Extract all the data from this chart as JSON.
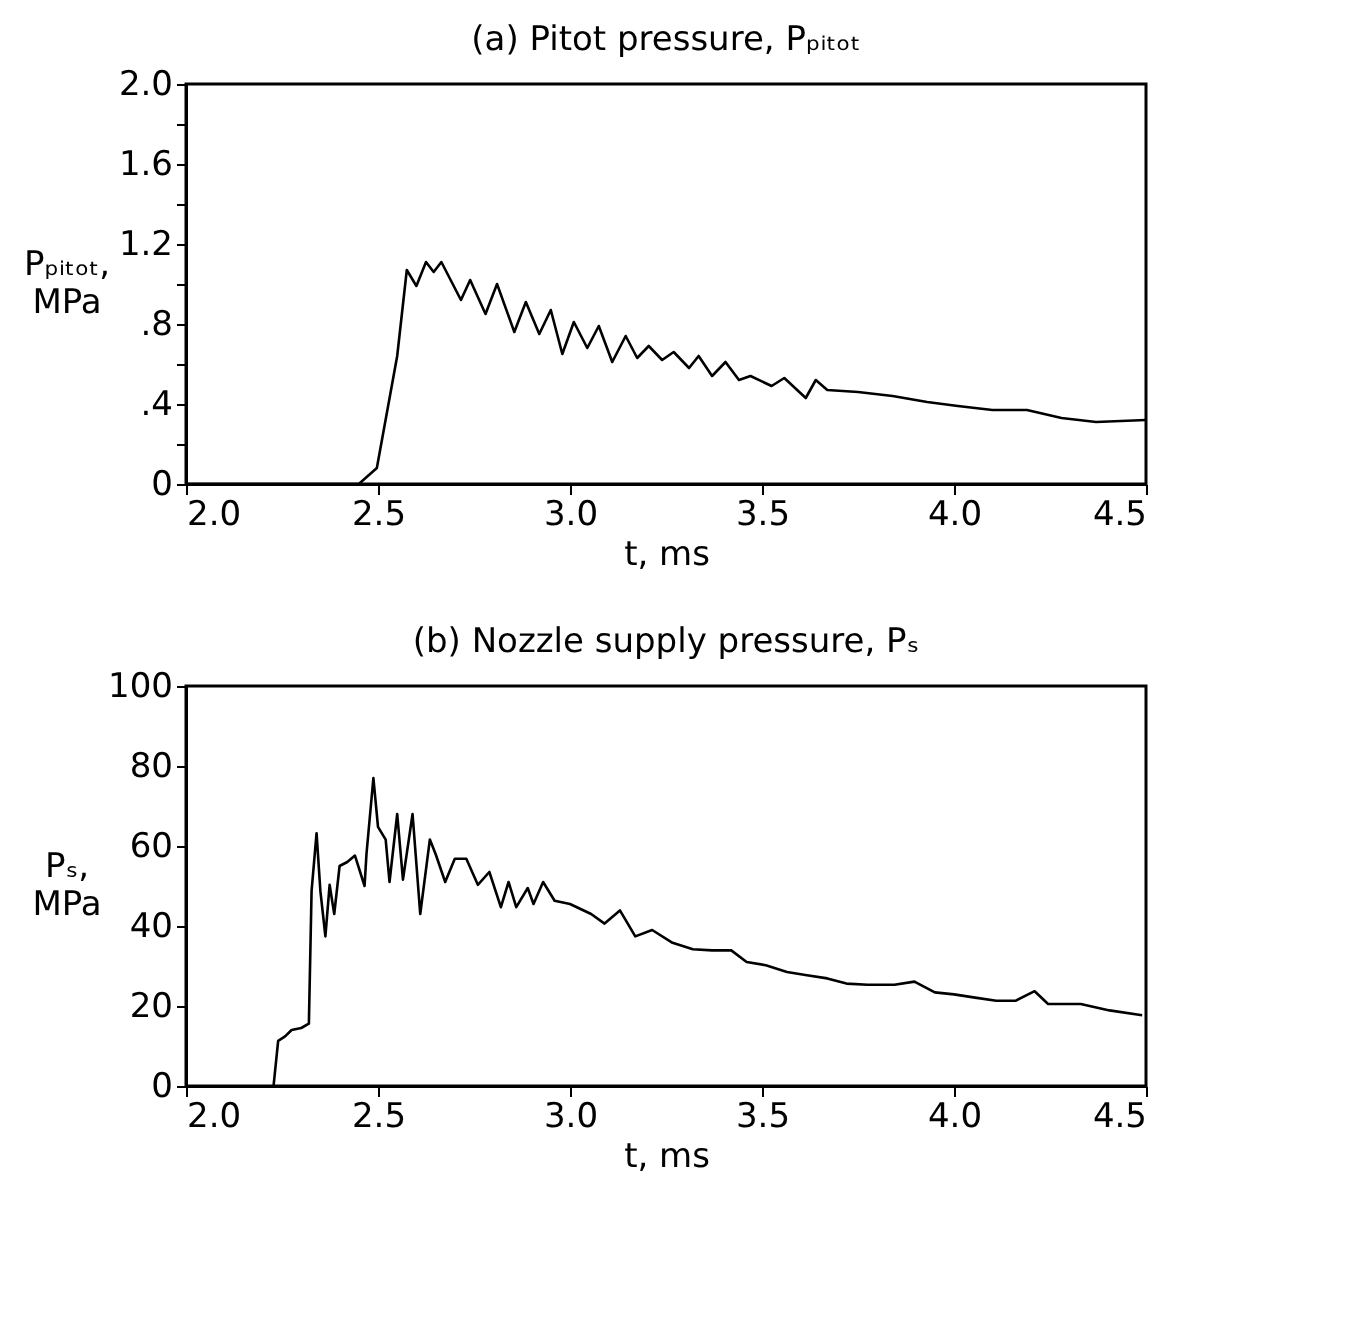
{
  "chart_data": [
    {
      "type": "line",
      "title": "(a) Pitot pressure, Pₚᵢₜₒₜ",
      "xlabel": "t, ms",
      "ylabel": "Pₚᵢₜₒₜ, MPa",
      "xlim": [
        2.0,
        4.5
      ],
      "ylim": [
        0,
        2.0
      ],
      "xticks": [
        {
          "value": 2.0,
          "label": "2.0"
        },
        2.5,
        {
          "value": 3.0,
          "label": "3.0"
        },
        3.5,
        {
          "value": 4.0,
          "label": "4.0"
        },
        4.5
      ],
      "yticks": [
        0,
        {
          "value": 0.2,
          "label": null
        },
        {
          "value": 0.4,
          "label": ".4"
        },
        {
          "value": 0.6,
          "label": null
        },
        {
          "value": 0.8,
          "label": ".8"
        },
        {
          "value": 1.0,
          "label": null
        },
        1.2,
        {
          "value": 1.4,
          "label": null
        },
        1.6,
        {
          "value": 1.8,
          "label": null
        },
        {
          "value": 2.0,
          "label": "2.0"
        }
      ],
      "line_style": "solid",
      "series": [
        {
          "color": "#000000",
          "x": [
            2.0,
            2.45,
            2.497,
            2.55,
            2.575,
            2.6,
            2.625,
            2.645,
            2.665,
            2.716,
            2.74,
            2.78,
            2.81,
            2.855,
            2.885,
            2.92,
            2.95,
            2.98,
            3.01,
            3.045,
            3.075,
            3.11,
            3.145,
            3.175,
            3.205,
            3.24,
            3.27,
            3.31,
            3.335,
            3.37,
            3.405,
            3.44,
            3.47,
            3.525,
            3.558,
            3.614,
            3.64,
            3.67,
            3.75,
            3.84,
            3.93,
            4.01,
            4.1,
            4.19,
            4.28,
            4.37,
            4.5
          ],
          "values": [
            0,
            0,
            0.08,
            0.64,
            1.07,
            0.99,
            1.11,
            1.06,
            1.11,
            0.92,
            1.02,
            0.85,
            1.0,
            0.76,
            0.91,
            0.75,
            0.87,
            0.65,
            0.81,
            0.68,
            0.79,
            0.61,
            0.74,
            0.63,
            0.69,
            0.62,
            0.66,
            0.58,
            0.64,
            0.54,
            0.61,
            0.52,
            0.54,
            0.49,
            0.53,
            0.43,
            0.52,
            0.47,
            0.46,
            0.44,
            0.41,
            0.39,
            0.37,
            0.37,
            0.33,
            0.31,
            0.32
          ]
        }
      ]
    },
    {
      "type": "line",
      "title": "(b) Nozzle supply pressure, Pₛ",
      "xlabel": "t, ms",
      "ylabel": "Pₛ, MPa",
      "xlim": [
        2.0,
        4.5
      ],
      "ylim": [
        0,
        100
      ],
      "xticks": [
        {
          "value": 2.0,
          "label": "2.0"
        },
        2.5,
        {
          "value": 3.0,
          "label": "3.0"
        },
        3.5,
        {
          "value": 4.0,
          "label": "4.0"
        },
        4.5
      ],
      "yticks": [
        0,
        20,
        40,
        60,
        80,
        100
      ],
      "line_style": "solid",
      "series": [
        {
          "color": "#000000",
          "x": [
            2.228,
            2.24,
            2.258,
            2.275,
            2.3,
            2.32,
            2.327,
            2.34,
            2.35,
            2.363,
            2.374,
            2.386,
            2.4,
            2.42,
            2.44,
            2.465,
            2.47,
            2.488,
            2.5,
            2.52,
            2.53,
            2.55,
            2.565,
            2.59,
            2.61,
            2.635,
            2.65,
            2.675,
            2.7,
            2.73,
            2.76,
            2.79,
            2.82,
            2.84,
            2.86,
            2.89,
            2.905,
            2.93,
            2.96,
            3.0,
            3.055,
            3.09,
            3.13,
            3.17,
            3.214,
            3.267,
            3.32,
            3.37,
            3.42,
            3.46,
            3.51,
            3.565,
            3.617,
            3.67,
            3.72,
            3.775,
            3.845,
            3.897,
            3.95,
            4.0,
            4.055,
            4.11,
            4.16,
            4.21,
            4.245,
            4.33,
            4.405,
            4.49
          ],
          "values": [
            0,
            11.3,
            12.4,
            14,
            14.5,
            15.6,
            48.7,
            63.2,
            48.7,
            37.4,
            50.3,
            43,
            55,
            56,
            57.6,
            50,
            58,
            77,
            64.8,
            61.6,
            51,
            68,
            51.6,
            68,
            43,
            61.6,
            58,
            51,
            56.8,
            56.8,
            50.3,
            53.5,
            44.7,
            51,
            44.7,
            49.5,
            45.5,
            51,
            46.3,
            45.5,
            43,
            40.6,
            43.9,
            37.4,
            39,
            35.8,
            34.2,
            33.9,
            33.9,
            31,
            30.2,
            28.5,
            27.7,
            26.9,
            25.6,
            25.3,
            25.3,
            26.1,
            23.4,
            22.9,
            22.1,
            21.3,
            21.3,
            23.7,
            20.5,
            20.5,
            18.9,
            17.7
          ]
        }
      ]
    }
  ]
}
